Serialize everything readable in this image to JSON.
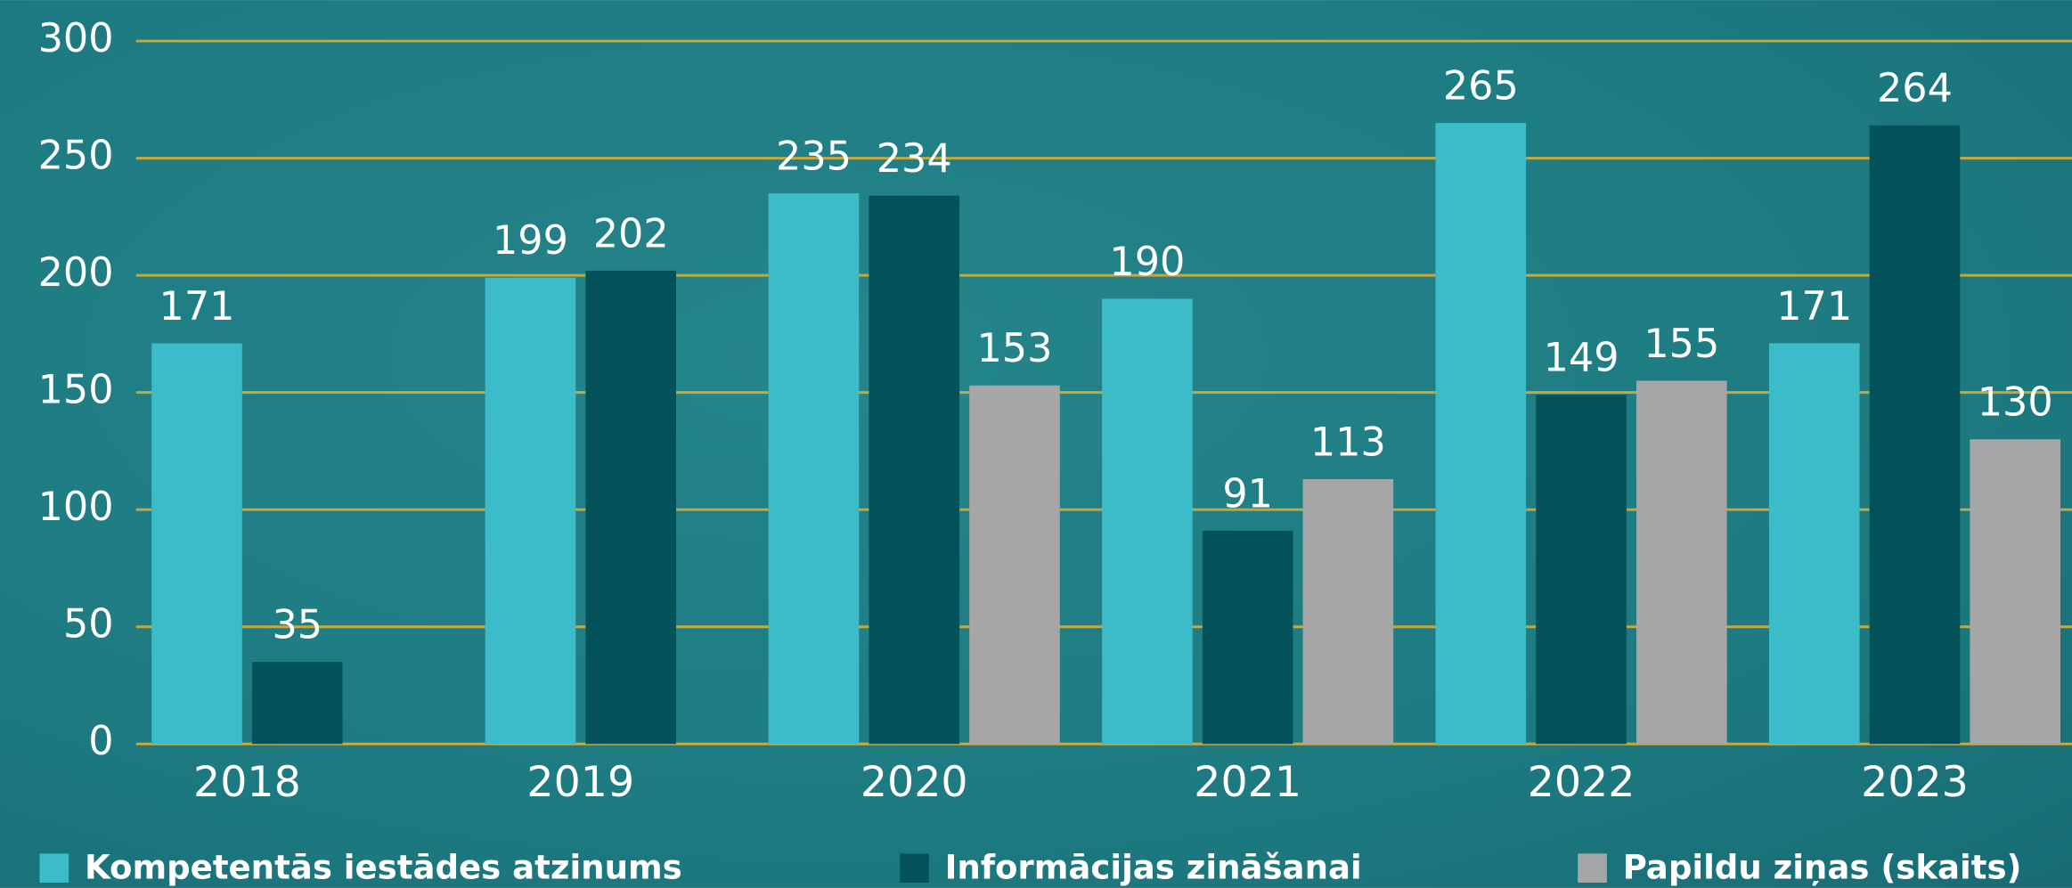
{
  "chart_data": {
    "type": "bar",
    "categories": [
      "2018",
      "2019",
      "2020",
      "2021",
      "2022",
      "2023"
    ],
    "series": [
      {
        "name": "Kompetentās iestādes atzinums",
        "color": "#3bbcc8",
        "values": [
          171,
          199,
          235,
          190,
          265,
          171
        ]
      },
      {
        "name": "Informācijas zināšanai",
        "color": "#03525a",
        "values": [
          35,
          202,
          234,
          91,
          149,
          264
        ]
      },
      {
        "name": "Papildu ziņas (skaits)",
        "color": "#a6a6a6",
        "values": [
          null,
          null,
          153,
          113,
          155,
          130
        ]
      }
    ],
    "ylim": [
      0,
      300
    ],
    "yticks": [
      0,
      50,
      100,
      150,
      200,
      250,
      300
    ],
    "grid": true,
    "grid_color": "#c8a83a",
    "legend": "bottom"
  }
}
